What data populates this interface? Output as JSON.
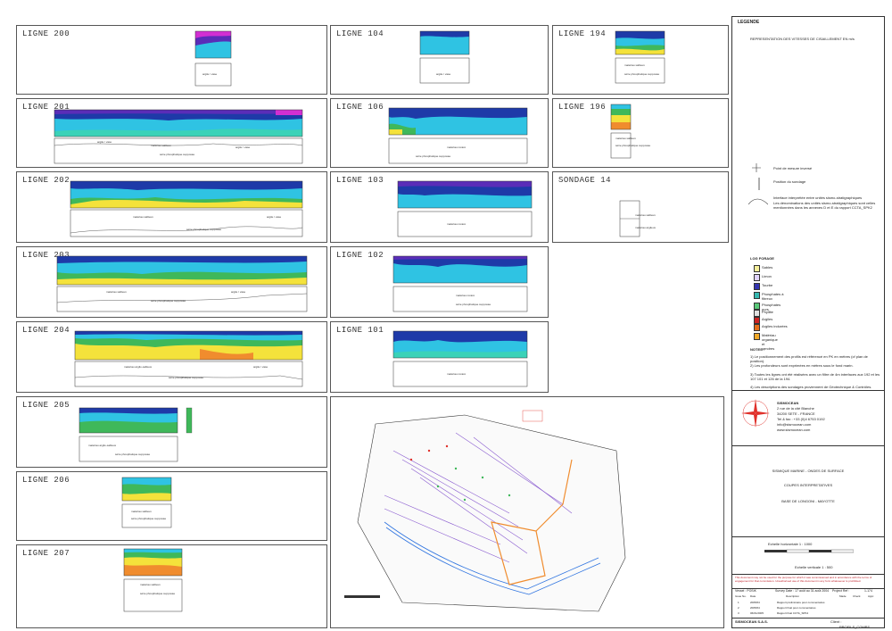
{
  "panels": [
    {
      "id": "l200",
      "title": "LIGNE 200",
      "ann": [
        "argile / vase"
      ]
    },
    {
      "id": "l201",
      "title": "LIGNE 201",
      "ann": [
        "argile / vase",
        "matériau sableux",
        "argile / vase",
        "série phosphatique supposée"
      ]
    },
    {
      "id": "l202",
      "title": "LIGNE 202",
      "ann": [
        "matériau sableux",
        "argile / vase",
        "série phosphatique supposée"
      ]
    },
    {
      "id": "l203",
      "title": "LIGNE 203",
      "ann": [
        "matériau sableux",
        "argile / vase",
        "série phosphatique supposée"
      ]
    },
    {
      "id": "l204",
      "title": "LIGNE 204",
      "ann": [
        "matériau argilo-sableux",
        "argile / vase",
        "série phosphatique supposée"
      ]
    },
    {
      "id": "l205",
      "title": "LIGNE 205",
      "ann": [
        "matériau argilo-sableux",
        "série phosphatique supposée"
      ]
    },
    {
      "id": "l206",
      "title": "LIGNE 206",
      "ann": [
        "matériau sableux",
        "série phosphatique supposée"
      ]
    },
    {
      "id": "l207",
      "title": "LIGNE 207",
      "ann": [
        "matériau sableux",
        "série phosphatique supposée"
      ]
    },
    {
      "id": "l104",
      "title": "LIGNE 104",
      "ann": [
        "argile / vase"
      ]
    },
    {
      "id": "l106",
      "title": "LIGNE 106",
      "ann": [
        "matériau rocaré",
        "série phosphatique supposée"
      ]
    },
    {
      "id": "l103",
      "title": "LIGNE 103",
      "ann": [
        "matériau rocaré"
      ]
    },
    {
      "id": "l102",
      "title": "LIGNE 102",
      "ann": [
        "matériau rocaré",
        "série phosphatique supposée"
      ]
    },
    {
      "id": "l101",
      "title": "LIGNE 101",
      "ann": [
        "matériau rocaré"
      ]
    },
    {
      "id": "l194",
      "title": "LIGNE 194",
      "ann": [
        "matériau sableux",
        "série phosphatique supposée"
      ]
    },
    {
      "id": "l196",
      "title": "LIGNE 196",
      "ann": [
        "matériau sableux",
        "série phosphatique supposée"
      ]
    },
    {
      "id": "s14",
      "title": "SONDAGE 14",
      "ann": [
        "matériau sableux",
        "matériau argileux"
      ]
    }
  ],
  "legend": {
    "title": "LEGENDE",
    "velocity_label": "REPRESENTATION DES VITESSES DE CISAILLEMENT EN m/s",
    "point_label": "Point de mesure inversé",
    "sondage_label": "Position du sondage",
    "interface_label_1": "Interface interprétée entre unités sismo-stratigraphiques",
    "interface_label_2": "Les dénominations des unités sismo-stratigraphiques sont celles mentionnées dans les annexes D et E du rapport CCTA_SPK2",
    "logs_title": "LOG FORAGE",
    "logs": [
      {
        "label": "Sables",
        "color": "#f5ef9a"
      },
      {
        "label": "Limon",
        "color": "#e0d3ff"
      },
      {
        "label": "Tourbe",
        "color": "#3334b0"
      },
      {
        "label": "Phosphates à fibreux",
        "color": "#35b8b0"
      },
      {
        "label": "Phosphates purs",
        "color": "#58c878"
      },
      {
        "label": "Phyllite",
        "color": "#e0e0e0"
      },
      {
        "label": "Argiles",
        "color": "#cc2222"
      },
      {
        "label": "Argiles indurées",
        "color": "#e56e1a"
      },
      {
        "label": "Matériau organique et cendres",
        "color": "#f0a828"
      }
    ],
    "notes_title": "NOTES :",
    "notes": [
      "1) Le positionnement des profils est référencé en PK en mètres (cf plan de position).",
      "2) Les profondeurs sont exprimées en mètres sous le fond marin.",
      "3) Toutes les lignes ont été réalisées avec un filtre de 4m interfaces aux 192 et les 107 101 et 126 de la 194.",
      "4) Les descriptions des sondages proviennent de Géotechnique & Contrôles."
    ],
    "company": {
      "name": "SISMOCEAN",
      "address1": "2 rue de la cité Blanche",
      "address2": "34200 SETE - FRANCE",
      "phone": "Tel & fax : +33 (0)4 6753 0192",
      "email": "info@sismocean.com",
      "web": "www.sismocean.com"
    },
    "project_title": "SISMIQUE MARINE - ONDES DE SURFACE",
    "subtitle": "COUPES INTERPRETATIVES",
    "site": "BASE DE LONGONI - MAYOTTE",
    "scale_h": "Echelle horizontale  1 : 1000",
    "scale_v": "Echelle verticale  1 : 500",
    "disclaimer": "This document may not be used for the purpose for which it was commissioned and in accordance with the terms of engagement for that commission. Unauthorised use of this document in any form whatsoever is prohibited.",
    "table_headers": [
      "Vessel : POSIK",
      "Survey Date : 17 août au 31 août 2004",
      "Project Ref :",
      "1-174"
    ],
    "rev_header": [
      "Issue No.",
      "Date",
      "Description",
      "Made",
      "Check",
      "Appr."
    ],
    "revisions": [
      [
        "1",
        "2005/04",
        "Rapport préliminaire pour commentaires"
      ],
      [
        "2",
        "2005/04",
        "Rapport final pour commentaires"
      ],
      [
        "3",
        "06/01/2005",
        "Rapport final CCTA_SPK2"
      ]
    ],
    "footer_company": "SISMOCEAN S.A.S.",
    "client_label": "Client :",
    "drawing_ref": "PROFILS_COMPS"
  },
  "colors": {
    "magenta": "#d22fd2",
    "purple": "#5a2db8",
    "darkblue": "#1e3aa8",
    "blue": "#2f74e0",
    "cyan": "#2fc3e3",
    "teal": "#3bd2b8",
    "green": "#3fb85a",
    "yellow": "#f4e23b",
    "orange": "#f08c2e",
    "red": "#d93b25",
    "accent": "#e0302a"
  }
}
